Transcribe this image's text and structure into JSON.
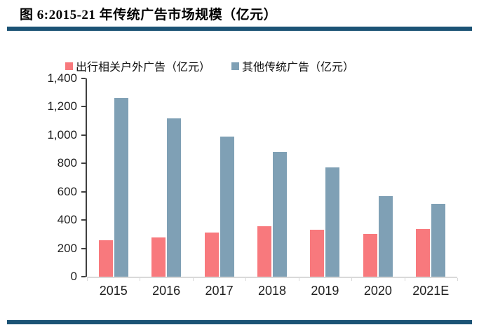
{
  "figure": {
    "title": "图 6:2015-21 年传统广告市场规模（亿元）"
  },
  "colors": {
    "series_outdoor": "#F8797D",
    "series_other": "#7FA0B5",
    "rule_blue": "#1B5375",
    "axis_line": "#404040",
    "baseline_gray": "#D9D9D9",
    "text": "#1F1F1F"
  },
  "chart_data": {
    "type": "bar",
    "title": "图 6:2015-21 年传统广告市场规模（亿元）",
    "categories": [
      "2015",
      "2016",
      "2017",
      "2018",
      "2019",
      "2020",
      "2021E"
    ],
    "series": [
      {
        "name": "出行相关户外广告（亿元）",
        "color": "#F8797D",
        "values": [
          255,
          275,
          310,
          355,
          330,
          300,
          335
        ]
      },
      {
        "name": "其他传统广告（亿元）",
        "color": "#7FA0B5",
        "values": [
          1260,
          1120,
          990,
          880,
          770,
          570,
          515
        ]
      }
    ],
    "xlabel": "",
    "ylabel": "",
    "ylim": [
      0,
      1400
    ],
    "ytick_step": 200,
    "ytick_labels": [
      "0",
      "200",
      "400",
      "600",
      "800",
      "1,000",
      "1,200",
      "1,400"
    ],
    "grid": false,
    "legend_position": "top"
  }
}
